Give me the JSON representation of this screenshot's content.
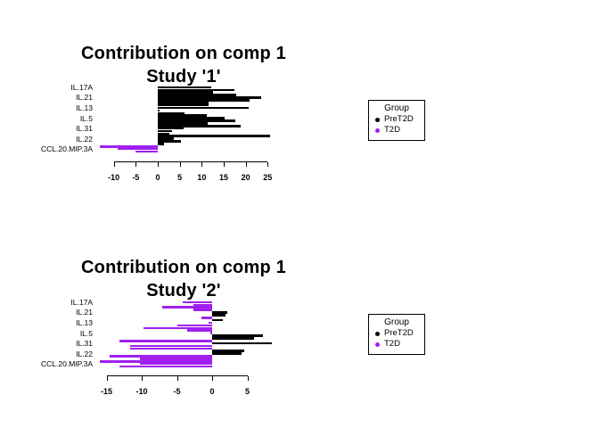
{
  "legend": {
    "title": "Group",
    "items": [
      {
        "label": "PreT2D",
        "color": "#000000"
      },
      {
        "label": "T2D",
        "color": "#A020F0"
      }
    ]
  },
  "chart_data": [
    {
      "type": "bar",
      "orientation": "horizontal",
      "title": "Contribution on comp 1",
      "subtitle": "Study '1'",
      "xlabel": "",
      "ylabel": "",
      "xticks": [
        -10,
        -5,
        0,
        5,
        10,
        15,
        20,
        25
      ],
      "xlim": [
        -13.5,
        26.5
      ],
      "grid": false,
      "legend_title": "Group",
      "groups": {
        "PreT2D": "#000000",
        "T2D": "#A020F0"
      },
      "ylabels": [
        "IL.17A",
        "IL.21",
        "IL.13",
        "IL.5",
        "IL.31",
        "IL.22",
        "CCL.20.MIP.3A"
      ],
      "labeled_bar_indices": [
        0,
        4,
        8,
        12,
        16,
        20,
        24
      ],
      "bars": [
        {
          "value": 12.1,
          "group": "PreT2D"
        },
        {
          "value": 17.4,
          "group": "PreT2D"
        },
        {
          "value": 12.6,
          "group": "PreT2D"
        },
        {
          "value": 17.8,
          "group": "PreT2D"
        },
        {
          "value": 23.6,
          "group": "PreT2D"
        },
        {
          "value": 20.9,
          "group": "PreT2D"
        },
        {
          "value": 11.6,
          "group": "PreT2D"
        },
        {
          "value": 11.6,
          "group": "PreT2D"
        },
        {
          "value": 20.6,
          "group": "PreT2D"
        },
        {
          "value": 0.4,
          "group": "PreT2D"
        },
        {
          "value": 6.0,
          "group": "PreT2D"
        },
        {
          "value": 11.2,
          "group": "PreT2D"
        },
        {
          "value": 15.3,
          "group": "PreT2D"
        },
        {
          "value": 17.6,
          "group": "PreT2D"
        },
        {
          "value": 11.3,
          "group": "PreT2D"
        },
        {
          "value": 18.9,
          "group": "PreT2D"
        },
        {
          "value": 5.9,
          "group": "PreT2D"
        },
        {
          "value": 3.3,
          "group": "PreT2D"
        },
        {
          "value": 2.6,
          "group": "PreT2D"
        },
        {
          "value": 25.5,
          "group": "PreT2D"
        },
        {
          "value": 3.6,
          "group": "PreT2D"
        },
        {
          "value": 5.3,
          "group": "PreT2D"
        },
        {
          "value": 1.5,
          "group": "PreT2D"
        },
        {
          "value": -13.2,
          "group": "T2D"
        },
        {
          "value": -9.2,
          "group": "T2D"
        },
        {
          "value": -5.1,
          "group": "T2D"
        }
      ]
    },
    {
      "type": "bar",
      "orientation": "horizontal",
      "title": "Contribution on comp 1",
      "subtitle": "Study '2'",
      "xlabel": "",
      "ylabel": "",
      "xticks": [
        -15,
        -10,
        -5,
        0,
        5
      ],
      "xlim": [
        -16.6,
        8.9
      ],
      "grid": false,
      "legend_title": "Group",
      "groups": {
        "PreT2D": "#000000",
        "T2D": "#A020F0"
      },
      "ylabels": [
        "IL.17A",
        "IL.21",
        "IL.13",
        "IL.5",
        "IL.31",
        "IL.22",
        "CCL.20.MIP.3A"
      ],
      "labeled_bar_indices": [
        0,
        4,
        8,
        12,
        16,
        20,
        24
      ],
      "bars": [
        {
          "value": -4.2,
          "group": "T2D"
        },
        {
          "value": -2.7,
          "group": "T2D"
        },
        {
          "value": -7.1,
          "group": "T2D"
        },
        {
          "value": -2.7,
          "group": "T2D"
        },
        {
          "value": 2.2,
          "group": "PreT2D"
        },
        {
          "value": 1.9,
          "group": "PreT2D"
        },
        {
          "value": -1.5,
          "group": "T2D"
        },
        {
          "value": 1.5,
          "group": "PreT2D"
        },
        {
          "value": -0.5,
          "group": "T2D"
        },
        {
          "value": -5.0,
          "group": "T2D"
        },
        {
          "value": -9.7,
          "group": "T2D"
        },
        {
          "value": -3.5,
          "group": "T2D"
        },
        {
          "value": -0.3,
          "group": "T2D"
        },
        {
          "value": 7.2,
          "group": "PreT2D"
        },
        {
          "value": 5.9,
          "group": "PreT2D"
        },
        {
          "value": -13.2,
          "group": "T2D"
        },
        {
          "value": 8.5,
          "group": "PreT2D"
        },
        {
          "value": -11.6,
          "group": "T2D"
        },
        {
          "value": -11.6,
          "group": "T2D"
        },
        {
          "value": 4.5,
          "group": "PreT2D"
        },
        {
          "value": 4.2,
          "group": "PreT2D"
        },
        {
          "value": -14.5,
          "group": "T2D"
        },
        {
          "value": -10.3,
          "group": "T2D"
        },
        {
          "value": -16.0,
          "group": "T2D"
        },
        {
          "value": -10.3,
          "group": "T2D"
        },
        {
          "value": -13.2,
          "group": "T2D"
        }
      ]
    }
  ]
}
